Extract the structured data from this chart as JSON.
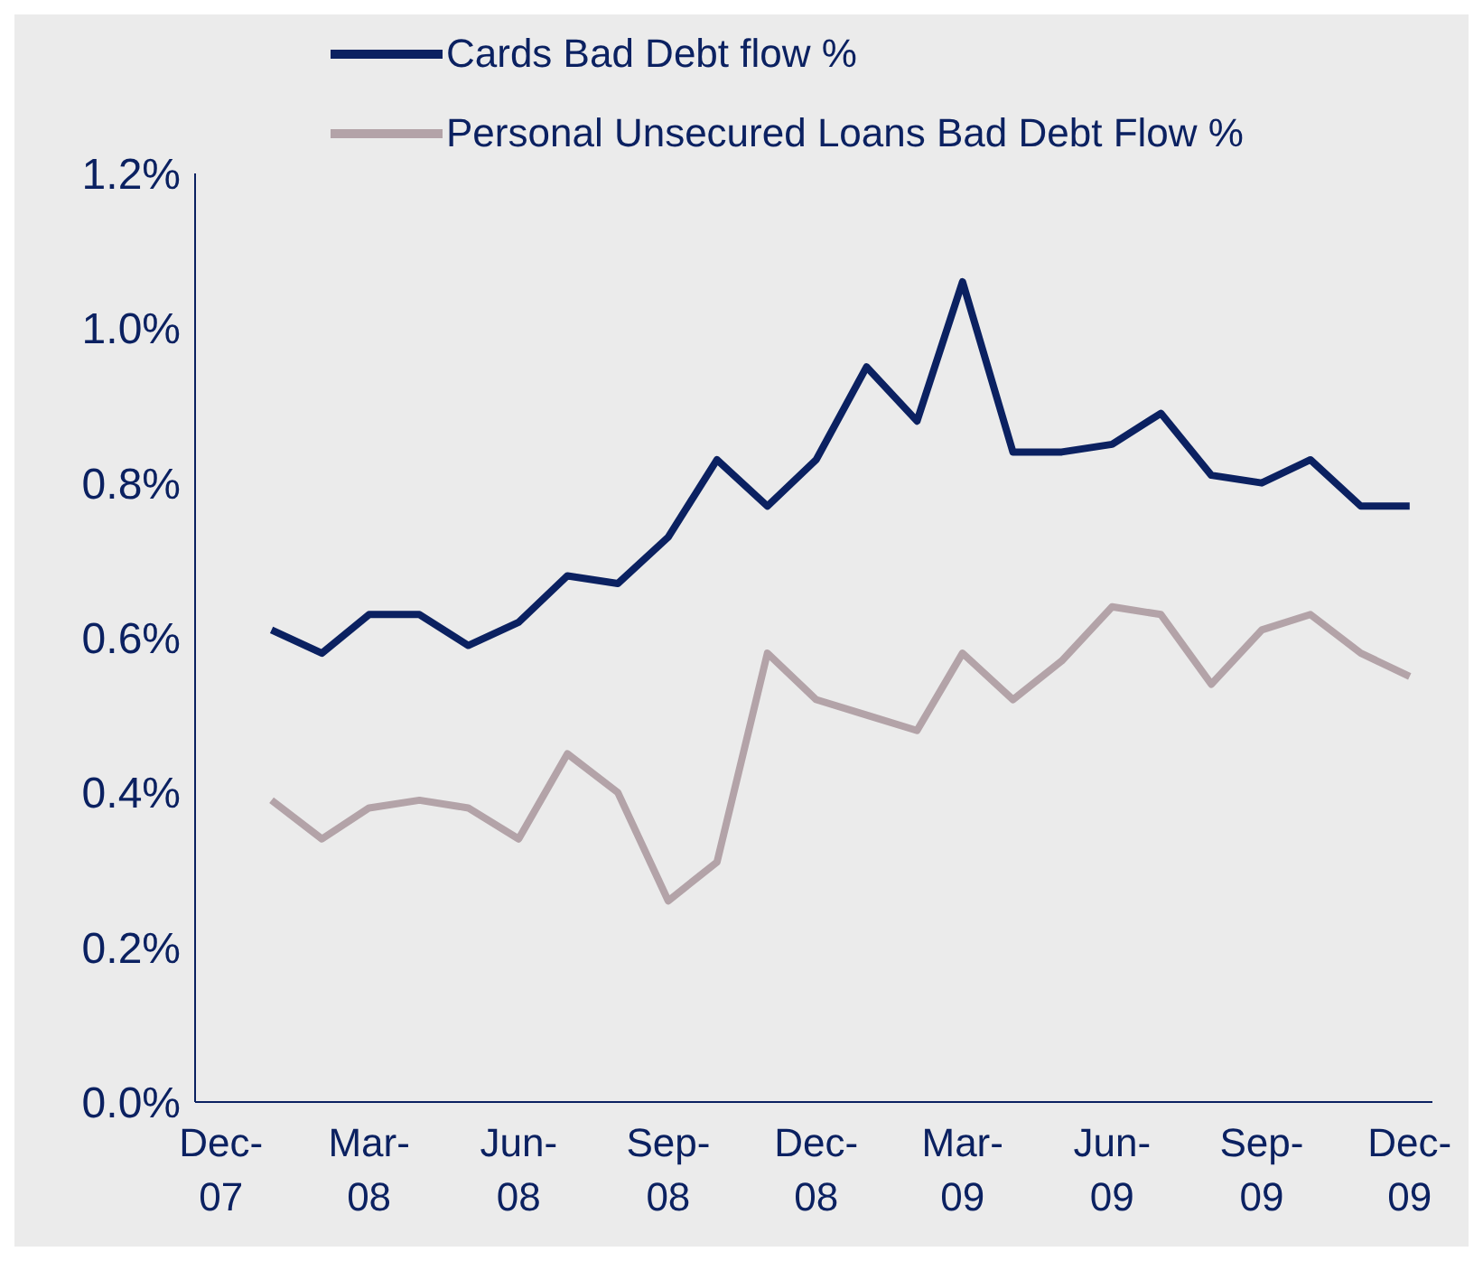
{
  "chart_data": {
    "type": "line",
    "x": [
      "2008-01",
      "2008-02",
      "2008-03",
      "2008-04",
      "2008-05",
      "2008-06",
      "2008-07",
      "2008-08",
      "2008-09",
      "2008-10",
      "2008-11",
      "2008-12",
      "2009-01",
      "2009-02",
      "2009-03",
      "2009-04",
      "2009-05",
      "2009-06",
      "2009-07",
      "2009-08",
      "2009-09",
      "2009-10",
      "2009-11",
      "2009-12"
    ],
    "series": [
      {
        "name": "Cards Bad Debt flow %",
        "color": "#0b2161",
        "values": [
          0.61,
          0.58,
          0.63,
          0.63,
          0.59,
          0.62,
          0.68,
          0.67,
          0.73,
          0.83,
          0.77,
          0.83,
          0.95,
          0.88,
          1.06,
          0.84,
          0.84,
          0.85,
          0.89,
          0.81,
          0.8,
          0.83,
          0.77,
          0.77
        ]
      },
      {
        "name": "Personal Unsecured Loans Bad Debt Flow %",
        "color": "#b3a3a8",
        "values": [
          0.39,
          0.34,
          0.38,
          0.39,
          0.38,
          0.34,
          0.45,
          0.4,
          0.26,
          0.31,
          0.58,
          0.52,
          0.5,
          0.48,
          0.58,
          0.52,
          0.57,
          0.64,
          0.63,
          0.54,
          0.61,
          0.63,
          0.58,
          0.55
        ]
      }
    ],
    "xlim": [
      "2007-11-15",
      "2009-12-15"
    ],
    "xticks": [
      {
        "value": "2007-12",
        "label": "Dec-07"
      },
      {
        "value": "2008-03",
        "label": "Mar-08"
      },
      {
        "value": "2008-06",
        "label": "Jun-08"
      },
      {
        "value": "2008-09",
        "label": "Sep-08"
      },
      {
        "value": "2008-12",
        "label": "Dec-08"
      },
      {
        "value": "2009-03",
        "label": "Mar-09"
      },
      {
        "value": "2009-06",
        "label": "Jun-09"
      },
      {
        "value": "2009-09",
        "label": "Sep-09"
      },
      {
        "value": "2009-12",
        "label": "Dec-09"
      }
    ],
    "ylim": [
      0,
      1.2
    ],
    "yticks": [
      {
        "value": 0,
        "label": "0.0%"
      },
      {
        "value": 0.2,
        "label": "0.2%"
      },
      {
        "value": 0.4,
        "label": "0.4%"
      },
      {
        "value": 0.6,
        "label": "0.6%"
      },
      {
        "value": 0.8,
        "label": "0.8%"
      },
      {
        "value": 1.0,
        "label": "1.0%"
      },
      {
        "value": 1.2,
        "label": "1.2%"
      }
    ],
    "grid": false,
    "legend": "top",
    "marker": "none",
    "line_style": "solid"
  }
}
